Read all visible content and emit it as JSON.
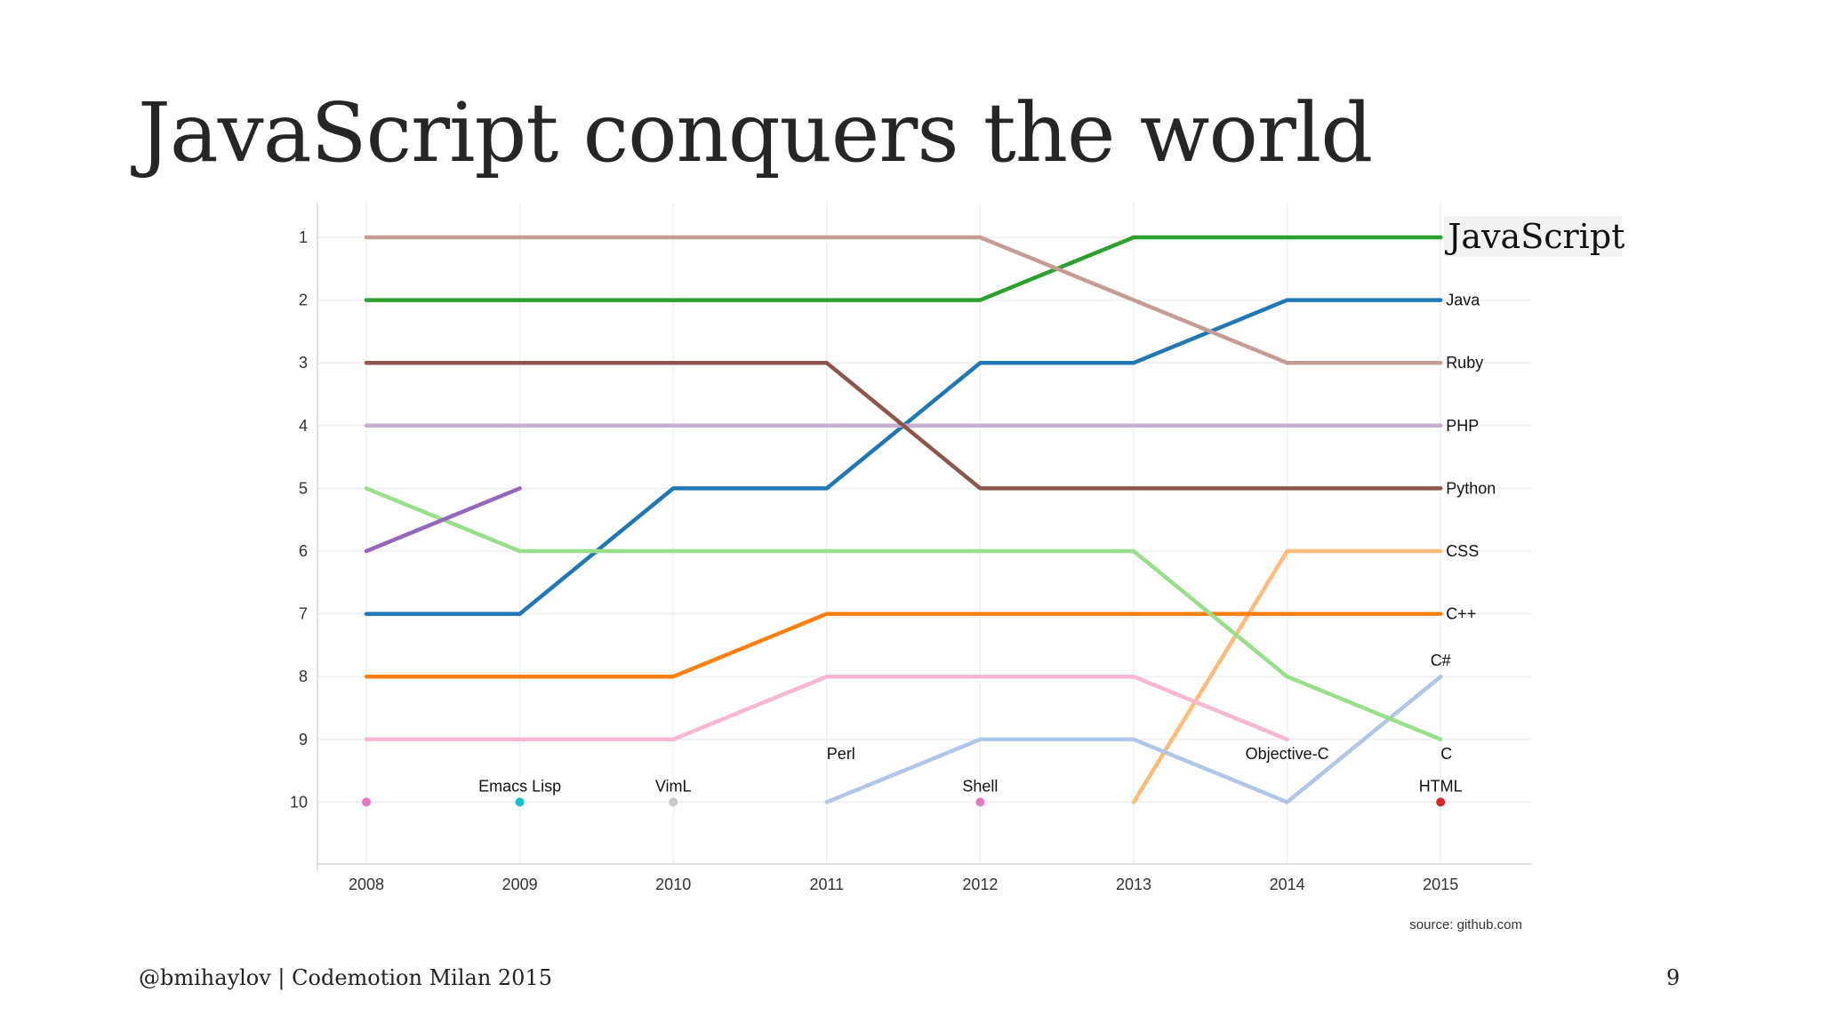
{
  "slide": {
    "title": "JavaScript conquers the world",
    "footer": "@bmihaylov | Codemotion Milan 2015",
    "page_number": "9"
  },
  "chart_data": {
    "type": "line",
    "subtype": "bump",
    "source_note": "source: github.com",
    "x": [
      "2008",
      "2009",
      "2010",
      "2011",
      "2012",
      "2013",
      "2014",
      "2015"
    ],
    "y_ticks": [
      "1",
      "2",
      "3",
      "4",
      "5",
      "6",
      "7",
      "8",
      "9",
      "10"
    ],
    "ylim": [
      10,
      1
    ],
    "grid": true,
    "series": [
      {
        "name": "JavaScript",
        "color": "#2ca02c",
        "values": [
          2,
          2,
          2,
          2,
          2,
          1,
          1,
          1
        ],
        "label_at": 7,
        "highlight": true
      },
      {
        "name": "Java",
        "color": "#1f77b4",
        "values": [
          7,
          7,
          5,
          5,
          3,
          3,
          2,
          2
        ],
        "label_at": 7
      },
      {
        "name": "Ruby",
        "color": "#c49c94",
        "values": [
          1,
          1,
          1,
          1,
          1,
          2,
          3,
          3
        ],
        "label_at": 7
      },
      {
        "name": "PHP",
        "color": "#c5b0d5",
        "values": [
          4,
          4,
          4,
          4,
          4,
          4,
          4,
          4
        ],
        "label_at": 7
      },
      {
        "name": "Python",
        "color": "#8c564b",
        "values": [
          3,
          3,
          3,
          3,
          5,
          5,
          5,
          5
        ],
        "label_at": 7
      },
      {
        "name": "CSS",
        "color": "#ffbb78",
        "values": [
          null,
          null,
          null,
          null,
          null,
          10,
          6,
          6
        ],
        "label_at": 7
      },
      {
        "name": "C++",
        "color": "#ff7f0e",
        "values": [
          8,
          8,
          8,
          7,
          7,
          7,
          7,
          7
        ],
        "label_at": 7
      },
      {
        "name": "C#",
        "color": "#aec7e8",
        "values": [
          null,
          null,
          null,
          10,
          9,
          9,
          10,
          8
        ],
        "label_at": 7,
        "label_pos": "above"
      },
      {
        "name": "C",
        "color": "#98df8a",
        "values": [
          5,
          6,
          6,
          6,
          6,
          6,
          8,
          9
        ],
        "label_at": 7,
        "label_pos": "below"
      },
      {
        "name": "Objective-C",
        "color": "#f7b6d2",
        "values": [
          9,
          9,
          9,
          8,
          8,
          8,
          9,
          null
        ],
        "label_at": 6,
        "label_pos": "below"
      },
      {
        "name": "Perl",
        "color": "#9467bd",
        "values": [
          6,
          5,
          null,
          9,
          null,
          null,
          null,
          null
        ],
        "label_at": 3,
        "label_pos": "below"
      },
      {
        "name": "Shell",
        "color": "#e377c2",
        "values": [
          10,
          null,
          null,
          null,
          10,
          null,
          null,
          null
        ],
        "label_at": 4,
        "label_pos": "above",
        "dots_only": true
      },
      {
        "name": "Emacs Lisp",
        "color": "#17becf",
        "values": [
          null,
          10,
          null,
          null,
          null,
          null,
          null,
          null
        ],
        "label_at": 1,
        "label_pos": "above",
        "dots_only": true
      },
      {
        "name": "VimL",
        "color": "#c7c7c7",
        "values": [
          null,
          null,
          10,
          null,
          null,
          null,
          null,
          null
        ],
        "label_at": 2,
        "label_pos": "above",
        "dots_only": true
      },
      {
        "name": "HTML",
        "color": "#d62728",
        "values": [
          null,
          null,
          null,
          null,
          null,
          null,
          null,
          10
        ],
        "label_at": 7,
        "label_pos": "above",
        "dots_only": true
      }
    ]
  }
}
